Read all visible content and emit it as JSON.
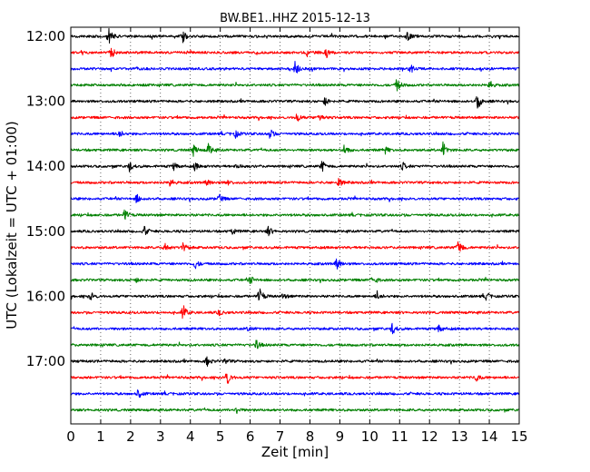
{
  "chart_data": {
    "type": "line",
    "title": "BW.BE1..HHZ 2015-12-13",
    "xlabel": "Zeit  [min]",
    "ylabel": "UTC (Lokalzeit = UTC + 01:00)",
    "xlim": [
      0,
      15
    ],
    "xticks": [
      "0",
      "1",
      "2",
      "3",
      "4",
      "5",
      "6",
      "7",
      "8",
      "9",
      "10",
      "11",
      "12",
      "13",
      "14",
      "15"
    ],
    "yticks": [
      {
        "label": "12:00",
        "row": 0
      },
      {
        "label": "13:00",
        "row": 4
      },
      {
        "label": "14:00",
        "row": 8
      },
      {
        "label": "15:00",
        "row": 12
      },
      {
        "label": "16:00",
        "row": 16
      },
      {
        "label": "17:00",
        "row": 20
      }
    ],
    "row_minutes": 15,
    "grid": "vertical dotted",
    "trace_colors": [
      "#000000",
      "#ff0000",
      "#0000ff",
      "#008000"
    ],
    "series": [
      {
        "start": "12:00",
        "bursts": [
          [
            1.25,
            1.0
          ],
          [
            3.75,
            0.6
          ],
          [
            11.25,
            0.5
          ]
        ]
      },
      {
        "start": "12:15",
        "bursts": [
          [
            1.35,
            0.6
          ],
          [
            7.9,
            0.35
          ],
          [
            8.55,
            0.5
          ]
        ]
      },
      {
        "start": "12:30",
        "bursts": [
          [
            7.5,
            0.8
          ],
          [
            11.35,
            0.5
          ]
        ]
      },
      {
        "start": "12:45",
        "bursts": [
          [
            10.9,
            0.7
          ],
          [
            14.0,
            0.5
          ]
        ]
      },
      {
        "start": "13:00",
        "bursts": [
          [
            8.5,
            0.5
          ],
          [
            13.6,
            1.0
          ]
        ]
      },
      {
        "start": "13:15",
        "bursts": [
          [
            7.55,
            0.5
          ],
          [
            8.3,
            0.5
          ],
          [
            15.0,
            0.4
          ]
        ]
      },
      {
        "start": "13:30",
        "bursts": [
          [
            1.6,
            0.5
          ],
          [
            5.5,
            0.4
          ],
          [
            6.65,
            0.6
          ]
        ]
      },
      {
        "start": "13:45",
        "bursts": [
          [
            4.1,
            0.6
          ],
          [
            4.6,
            0.7
          ],
          [
            9.15,
            0.6
          ],
          [
            10.5,
            0.4
          ],
          [
            12.45,
            0.8
          ]
        ]
      },
      {
        "start": "14:00",
        "bursts": [
          [
            1.95,
            0.5
          ],
          [
            3.45,
            0.5
          ],
          [
            4.15,
            0.4
          ],
          [
            5.55,
            0.3
          ],
          [
            8.4,
            0.6
          ],
          [
            11.1,
            0.4
          ]
        ]
      },
      {
        "start": "14:15",
        "bursts": [
          [
            3.3,
            0.5
          ],
          [
            4.55,
            0.5
          ],
          [
            5.25,
            0.3
          ],
          [
            8.95,
            0.5
          ]
        ]
      },
      {
        "start": "14:30",
        "bursts": [
          [
            2.2,
            0.5
          ],
          [
            4.95,
            0.5
          ]
        ]
      },
      {
        "start": "14:45",
        "bursts": [
          [
            1.8,
            0.6
          ]
        ]
      },
      {
        "start": "15:00",
        "bursts": [
          [
            2.45,
            0.5
          ],
          [
            5.4,
            0.3
          ],
          [
            6.6,
            0.5
          ]
        ]
      },
      {
        "start": "15:15",
        "bursts": [
          [
            3.15,
            0.5
          ],
          [
            3.75,
            0.5
          ],
          [
            12.95,
            1.0
          ]
        ]
      },
      {
        "start": "15:30",
        "bursts": [
          [
            4.15,
            0.5
          ],
          [
            8.9,
            0.9
          ]
        ]
      },
      {
        "start": "15:45",
        "bursts": [
          [
            2.15,
            0.3
          ],
          [
            6.0,
            0.4
          ],
          [
            10.1,
            0.6
          ]
        ]
      },
      {
        "start": "16:00",
        "bursts": [
          [
            0.65,
            0.5
          ],
          [
            6.3,
            1.0
          ],
          [
            7.1,
            0.3
          ],
          [
            10.25,
            0.5
          ],
          [
            13.9,
            0.4
          ]
        ]
      },
      {
        "start": "16:15",
        "bursts": [
          [
            3.75,
            0.8
          ],
          [
            4.95,
            0.3
          ]
        ]
      },
      {
        "start": "16:30",
        "bursts": [
          [
            5.95,
            0.3
          ],
          [
            10.75,
            0.6
          ],
          [
            12.3,
            0.5
          ]
        ]
      },
      {
        "start": "16:45",
        "bursts": [
          [
            6.2,
            0.5
          ]
        ]
      },
      {
        "start": "17:00",
        "bursts": [
          [
            4.55,
            0.5
          ],
          [
            5.15,
            0.3
          ]
        ]
      },
      {
        "start": "17:15",
        "bursts": [
          [
            5.2,
            1.0
          ],
          [
            13.55,
            0.5
          ]
        ]
      },
      {
        "start": "17:30",
        "bursts": [
          [
            2.25,
            0.5
          ]
        ]
      },
      {
        "start": "17:45",
        "bursts": [
          [
            5.5,
            0.5
          ]
        ]
      }
    ]
  }
}
